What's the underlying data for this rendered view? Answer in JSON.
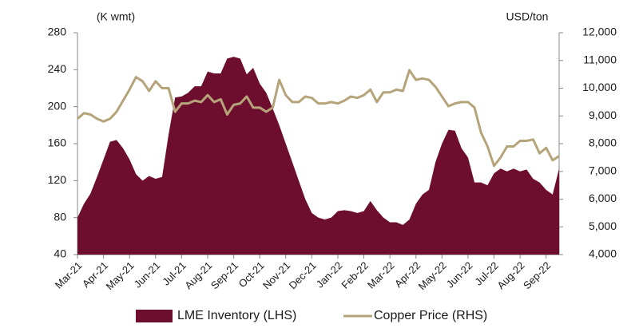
{
  "chart_data": {
    "type": "area-line",
    "y_label": "(K wmt)",
    "y2_label": "USD/ton",
    "categories": [
      "Mar-21",
      null,
      null,
      null,
      "Apr-21",
      null,
      null,
      null,
      "May-21",
      null,
      null,
      null,
      "Jun-21",
      null,
      null,
      null,
      "Jul-21",
      null,
      null,
      null,
      "Aug-21",
      null,
      null,
      null,
      "Sep-21",
      null,
      null,
      null,
      "Oct-21",
      null,
      null,
      null,
      "Nov-21",
      null,
      null,
      null,
      "Dec-21",
      null,
      null,
      null,
      "Jan-22",
      null,
      null,
      null,
      "Feb-22",
      null,
      null,
      null,
      "Mar-22",
      null,
      null,
      null,
      "Apr-22",
      null,
      null,
      null,
      "May-22",
      null,
      null,
      null,
      "Jun-22",
      null,
      null,
      null,
      "Jul-22",
      null,
      null,
      null,
      "Aug-22",
      null,
      null,
      null,
      "Sep-22",
      null,
      null
    ],
    "series": [
      {
        "name": "LME Inventory (LHS)",
        "color": "#6d0e2e",
        "kind": "area",
        "values": [
          80,
          95,
          106,
          124,
          143,
          162,
          164,
          155,
          143,
          127,
          120,
          125,
          122,
          124,
          170,
          210,
          211,
          215,
          222,
          222,
          238,
          236,
          236,
          252,
          254,
          252,
          235,
          242,
          225,
          215,
          198,
          180,
          160,
          140,
          120,
          100,
          85,
          80,
          78,
          80,
          87,
          88,
          87,
          85,
          87,
          98,
          88,
          80,
          75,
          75,
          72,
          78,
          95,
          105,
          110,
          140,
          160,
          175,
          174,
          155,
          145,
          118,
          118,
          115,
          128,
          133,
          130,
          133,
          130,
          132,
          122,
          118,
          110,
          105,
          133
        ]
      },
      {
        "name": "Copper Price (RHS)",
        "color": "#b5a47a",
        "kind": "line",
        "axis": "y2",
        "values": [
          8900,
          9100,
          9050,
          8900,
          8800,
          8900,
          9150,
          9550,
          9950,
          10400,
          10250,
          9900,
          10250,
          10000,
          10000,
          9150,
          9450,
          9450,
          9550,
          9500,
          9750,
          9500,
          9600,
          9050,
          9400,
          9450,
          9700,
          9300,
          9300,
          9150,
          9300,
          10300,
          9750,
          9500,
          9500,
          9700,
          9650,
          9450,
          9450,
          9500,
          9450,
          9550,
          9700,
          9650,
          9750,
          9950,
          9500,
          9850,
          9850,
          9950,
          9900,
          10650,
          10300,
          10350,
          10300,
          10050,
          9700,
          9350,
          9450,
          9500,
          9500,
          9300,
          8400,
          7900,
          7200,
          7500,
          7900,
          7900,
          8100,
          8100,
          8150,
          7650,
          7850,
          7400,
          7550
        ]
      }
    ],
    "ylim": [
      40,
      280
    ],
    "yticks": [
      40,
      80,
      120,
      160,
      200,
      240,
      280
    ],
    "y2lim": [
      4000,
      12000
    ],
    "y2ticks": [
      {
        "value": 4000,
        "label": "4,000"
      },
      {
        "value": 5000,
        "label": "5,000"
      },
      {
        "value": 6000,
        "label": "6,000"
      },
      {
        "value": 7000,
        "label": "7,000"
      },
      {
        "value": 8000,
        "label": "8,000"
      },
      {
        "value": 9000,
        "label": "9,000"
      },
      {
        "value": 10000,
        "label": "10,000"
      },
      {
        "value": 11000,
        "label": "11,000"
      },
      {
        "value": 12000,
        "label": "12,000"
      }
    ],
    "grid": false,
    "legend": "bottom"
  }
}
